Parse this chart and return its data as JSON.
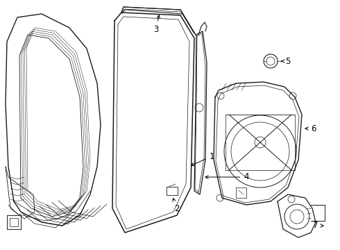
{
  "background_color": "#ffffff",
  "line_color": "#1a1a1a",
  "figsize": [
    4.9,
    3.6
  ],
  "dpi": 100
}
